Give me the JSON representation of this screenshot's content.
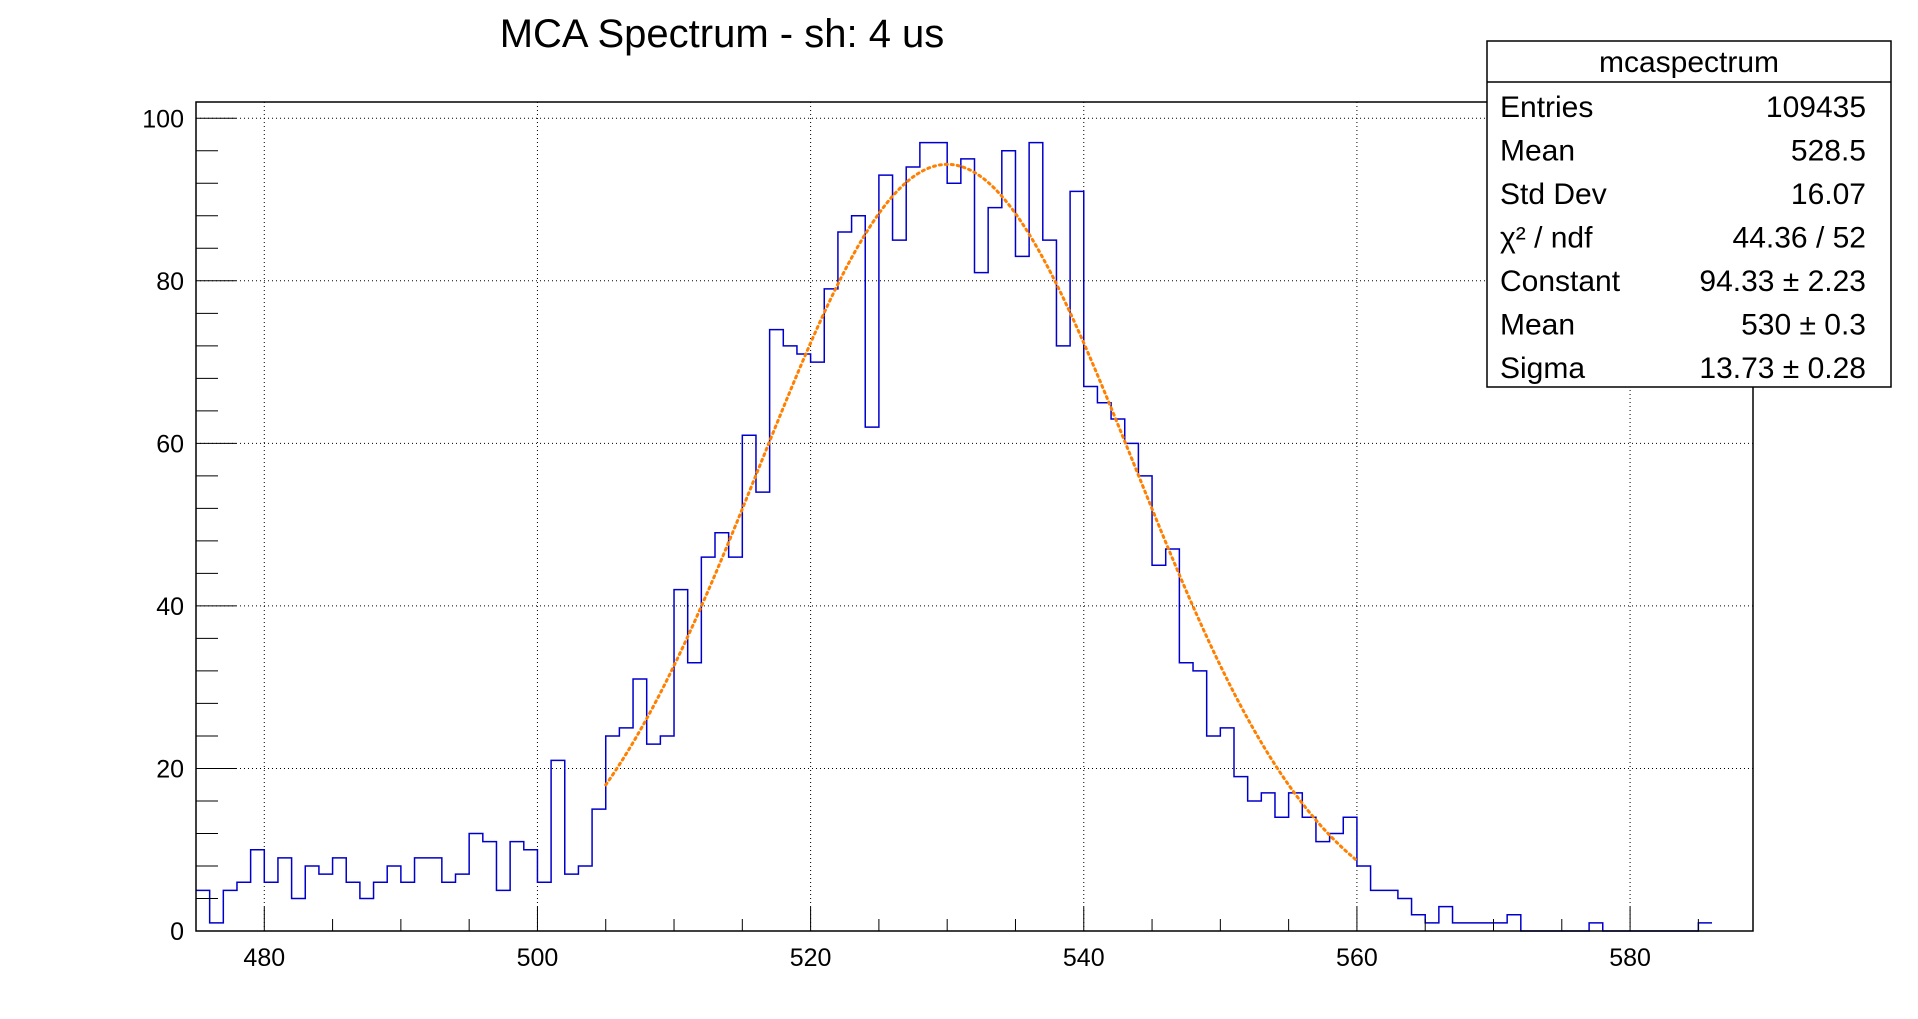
{
  "chart_data": {
    "type": "histogram",
    "title": "MCA Spectrum - sh: 4 us",
    "xlabel": "",
    "ylabel": "",
    "xlim": [
      475,
      589
    ],
    "ylim": [
      0,
      102
    ],
    "grid": true,
    "x_ticks": [
      "480",
      "500",
      "520",
      "540",
      "560",
      "580"
    ],
    "y_ticks": [
      "0",
      "20",
      "40",
      "60",
      "80",
      "100"
    ],
    "histogram": {
      "name": "mcaspectrum",
      "color": "#0000cc",
      "bin_start": 475,
      "bin_width": 1,
      "counts": [
        5,
        1,
        5,
        6,
        10,
        6,
        9,
        4,
        8,
        7,
        9,
        6,
        4,
        6,
        8,
        6,
        9,
        9,
        6,
        7,
        12,
        11,
        5,
        11,
        10,
        6,
        21,
        7,
        8,
        15,
        24,
        25,
        31,
        23,
        24,
        42,
        33,
        46,
        49,
        46,
        61,
        54,
        74,
        72,
        71,
        70,
        79,
        86,
        88,
        62,
        93,
        85,
        94,
        97,
        97,
        92,
        95,
        81,
        89,
        96,
        83,
        97,
        85,
        72,
        91,
        67,
        65,
        63,
        60,
        56,
        45,
        47,
        33,
        32,
        24,
        25,
        19,
        16,
        17,
        14,
        17,
        14,
        11,
        12,
        14,
        8,
        5,
        5,
        4,
        2,
        1,
        3,
        1,
        1,
        1,
        1,
        2,
        0,
        0,
        0,
        0,
        0,
        1,
        0,
        0,
        0,
        0,
        0,
        0,
        0,
        1
      ]
    },
    "fit": {
      "type": "gaus",
      "color": "#ff8000",
      "constant": 94.33,
      "mean": 530.0,
      "sigma": 13.73,
      "range": [
        505,
        560
      ]
    },
    "stats_box": {
      "title": "mcaspectrum",
      "position": "top-right",
      "rows": [
        {
          "label": "Entries",
          "value": "109435"
        },
        {
          "label": "Mean",
          "value": "528.5"
        },
        {
          "label": "Std Dev",
          "value": "16.07"
        },
        {
          "label": "χ² / ndf",
          "value": "44.36 / 52"
        },
        {
          "label": "Constant",
          "value": "94.33 ± 2.23"
        },
        {
          "label": "Mean",
          "value": "530 ± 0.3"
        },
        {
          "label": "Sigma",
          "value": "13.73 ± 0.28"
        }
      ]
    }
  }
}
